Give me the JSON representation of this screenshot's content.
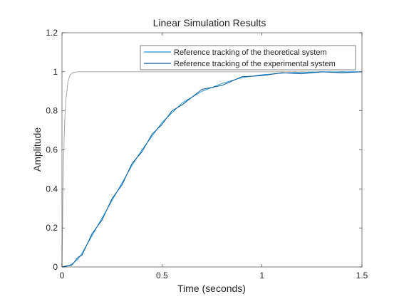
{
  "chart_data": {
    "type": "line",
    "title": "Linear Simulation Results",
    "xlabel": "Time (seconds)",
    "ylabel": "Amplitude",
    "xlim": [
      0,
      1.5
    ],
    "ylim": [
      0,
      1.2
    ],
    "xticks": [
      0,
      0.5,
      1,
      1.5
    ],
    "xtick_labels": [
      "0",
      "0.5",
      "1",
      "1.5"
    ],
    "yticks": [
      0,
      0.2,
      0.4,
      0.6,
      0.8,
      1,
      1.2
    ],
    "ytick_labels": [
      "0",
      "0.2",
      "0.4",
      "0.6",
      "0.8",
      "1",
      "1.2"
    ],
    "grid": false,
    "legend_position": "top-right",
    "series": [
      {
        "name": "Reference tracking of the theoretical system",
        "color": "#1f97d7",
        "x": [
          0,
          0.02,
          0.05,
          0.08,
          0.1,
          0.15,
          0.2,
          0.25,
          0.3,
          0.35,
          0.4,
          0.45,
          0.5,
          0.55,
          0.6,
          0.7,
          0.8,
          0.9,
          1.0,
          1.1,
          1.2,
          1.3,
          1.4,
          1.5
        ],
        "y": [
          0,
          0.002,
          0.015,
          0.04,
          0.07,
          0.16,
          0.25,
          0.34,
          0.43,
          0.52,
          0.6,
          0.67,
          0.74,
          0.79,
          0.84,
          0.9,
          0.94,
          0.97,
          0.985,
          0.993,
          0.997,
          0.999,
          1.0,
          1.0
        ]
      },
      {
        "name": "Reference tracking of the experimental system",
        "color": "#0a5a9c",
        "x": [
          0,
          0.02,
          0.05,
          0.08,
          0.1,
          0.15,
          0.2,
          0.25,
          0.3,
          0.35,
          0.4,
          0.45,
          0.5,
          0.55,
          0.6,
          0.7,
          0.8,
          0.9,
          1.0,
          1.1,
          1.2,
          1.3,
          1.4,
          1.5
        ],
        "y": [
          0,
          0.005,
          0.01,
          0.05,
          0.06,
          0.17,
          0.24,
          0.35,
          0.42,
          0.53,
          0.59,
          0.68,
          0.73,
          0.8,
          0.83,
          0.91,
          0.93,
          0.975,
          0.98,
          0.995,
          0.99,
          1.0,
          0.995,
          1.0
        ]
      },
      {
        "name": "",
        "color": "#a6a6a6",
        "x": [
          0,
          0.005,
          0.01,
          0.015,
          0.02,
          0.03,
          0.04,
          0.05,
          0.06,
          0.08,
          0.1,
          0.2,
          0.5,
          1.0,
          1.5
        ],
        "y": [
          0,
          0.4,
          0.63,
          0.78,
          0.86,
          0.95,
          0.982,
          0.993,
          0.998,
          1.0,
          1.0,
          1.0,
          1.0,
          1.0,
          1.0
        ]
      }
    ]
  }
}
